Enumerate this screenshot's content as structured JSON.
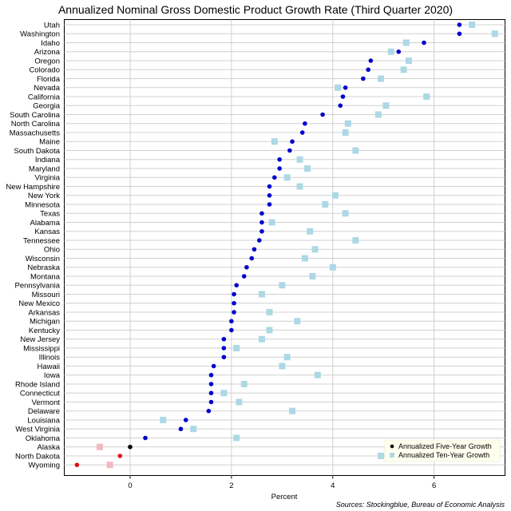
{
  "chart_data": {
    "type": "scatter",
    "title": "Annualized Nominal Gross Domestic Product Growth Rate (Third Quarter 2020)",
    "xlabel": "Percent",
    "xlim": [
      -1.3,
      7.4
    ],
    "xticks": [
      0,
      2,
      4,
      6
    ],
    "grid": true,
    "legend_position": "bottom-right",
    "source": "Sources: Stockingblue, Bureau of Economic Analysis",
    "categories": [
      "Utah",
      "Washington",
      "Idaho",
      "Arizona",
      "Oregon",
      "Colorado",
      "Florida",
      "Nevada",
      "California",
      "Georgia",
      "South Carolina",
      "North Carolina",
      "Massachusetts",
      "Maine",
      "South Dakota",
      "Indiana",
      "Maryland",
      "Virginia",
      "New Hampshire",
      "New York",
      "Minnesota",
      "Texas",
      "Alabama",
      "Kansas",
      "Tennessee",
      "Ohio",
      "Wisconsin",
      "Nebraska",
      "Montana",
      "Pennsylvania",
      "Missouri",
      "New Mexico",
      "Arkansas",
      "Michigan",
      "Kentucky",
      "New Jersey",
      "Mississippi",
      "Illinois",
      "Hawaii",
      "Iowa",
      "Rhode Island",
      "Connecticut",
      "Vermont",
      "Delaware",
      "Louisiana",
      "West Virginia",
      "Oklahoma",
      "Alaska",
      "North Dakota",
      "Wyoming"
    ],
    "series": [
      {
        "name": "Annualized Five-Year Growth",
        "marker": "circle",
        "color": "#0000cc",
        "color_zero": "#000000",
        "color_negative": "#dd1111",
        "values": [
          6.5,
          6.5,
          5.8,
          5.3,
          4.75,
          4.7,
          4.6,
          4.25,
          4.2,
          4.15,
          3.8,
          3.45,
          3.4,
          3.2,
          3.15,
          2.95,
          2.95,
          2.85,
          2.75,
          2.75,
          2.75,
          2.6,
          2.6,
          2.6,
          2.55,
          2.45,
          2.4,
          2.3,
          2.25,
          2.1,
          2.05,
          2.05,
          2.05,
          2.0,
          2.0,
          1.85,
          1.85,
          1.85,
          1.65,
          1.6,
          1.6,
          1.6,
          1.6,
          1.55,
          1.1,
          1.0,
          0.3,
          0.0,
          -0.2,
          -1.05
        ]
      },
      {
        "name": "Annualized Ten-Year Growth",
        "marker": "square",
        "color": "#add8e6",
        "color_negative": "#f4b8c0",
        "values": [
          6.75,
          7.2,
          5.45,
          5.15,
          5.5,
          5.4,
          4.95,
          4.1,
          5.85,
          5.05,
          4.9,
          4.3,
          4.25,
          2.85,
          4.45,
          3.35,
          3.5,
          3.1,
          3.35,
          4.05,
          3.85,
          4.25,
          2.8,
          3.55,
          4.45,
          3.65,
          3.45,
          4.0,
          3.6,
          3.0,
          2.6,
          null,
          2.75,
          3.3,
          2.75,
          2.6,
          2.1,
          3.1,
          3.0,
          3.7,
          2.25,
          1.85,
          2.15,
          3.2,
          0.65,
          1.25,
          2.1,
          -0.6,
          4.95,
          -0.4
        ]
      }
    ]
  }
}
